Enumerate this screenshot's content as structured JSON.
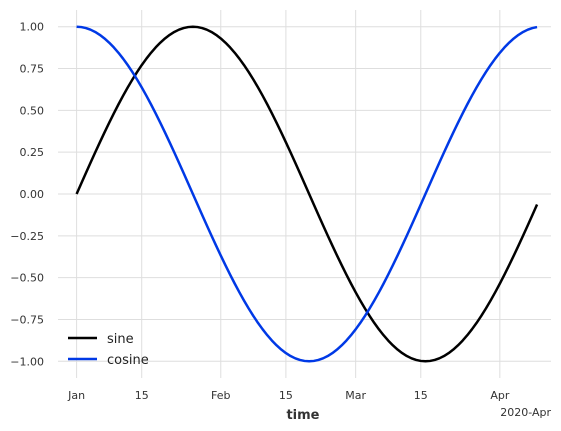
{
  "chart_data": {
    "type": "line",
    "xlabel": "time",
    "ylabel": "",
    "x_start": "2020-01-01",
    "x_end": "2020-04-09",
    "xlim": [
      "2019-12-28",
      "2020-04-12"
    ],
    "ylim": [
      -1.1,
      1.1
    ],
    "x_ticks": [
      {
        "date": "2020-01-01",
        "label": "Jan"
      },
      {
        "date": "2020-01-15",
        "label": "15"
      },
      {
        "date": "2020-02-01",
        "label": "Feb"
      },
      {
        "date": "2020-02-15",
        "label": "15"
      },
      {
        "date": "2020-03-01",
        "label": "Mar"
      },
      {
        "date": "2020-03-15",
        "label": "15"
      },
      {
        "date": "2020-04-01",
        "label": "Apr"
      }
    ],
    "x_offset_label": "2020-Apr",
    "y_ticks": [
      1.0,
      0.75,
      0.5,
      0.25,
      0.0,
      -0.25,
      -0.5,
      -0.75,
      -1.0
    ],
    "y_tick_labels": [
      "1.00",
      "0.75",
      "0.50",
      "0.25",
      "0.00",
      "−0.25",
      "−0.50",
      "−0.75",
      "−1.00"
    ],
    "series": [
      {
        "name": "sine",
        "color": "#000000",
        "function": "sin",
        "period_days": 100
      },
      {
        "name": "cosine",
        "color": "#0039e6",
        "function": "cos",
        "period_days": 100
      }
    ],
    "grid": true,
    "legend_position": "lower-left"
  }
}
